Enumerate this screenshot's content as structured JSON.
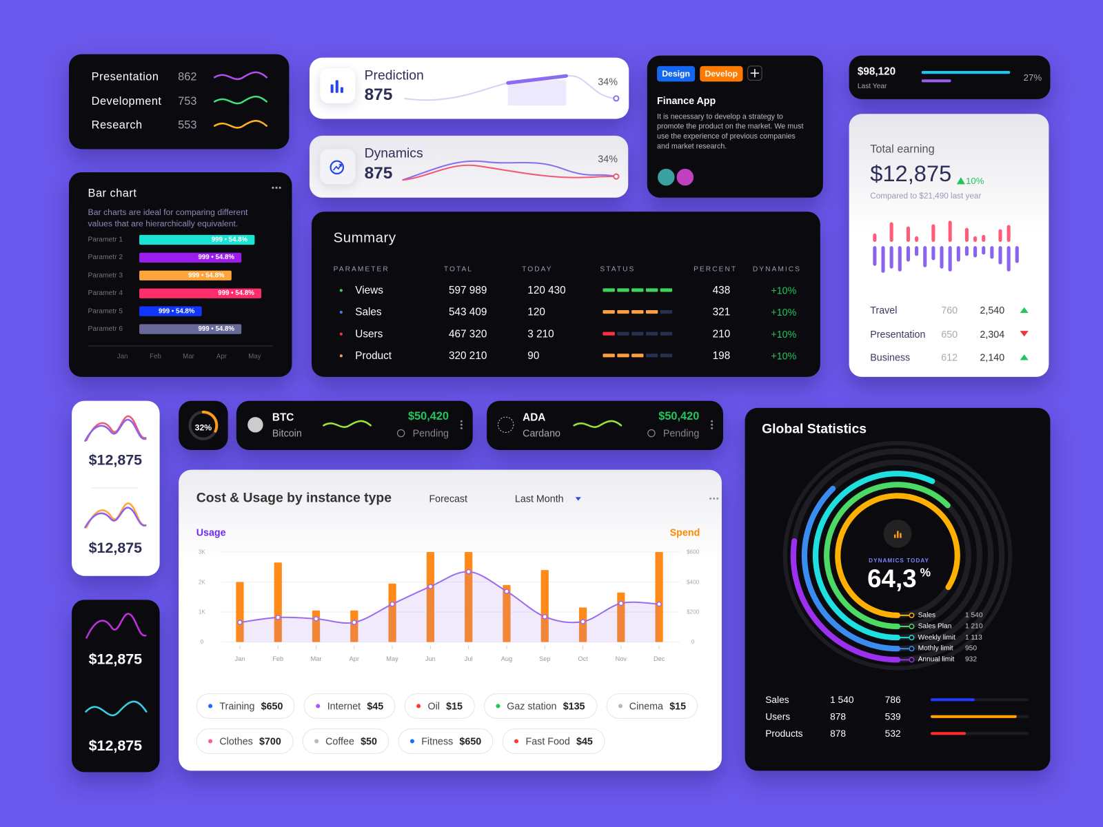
{
  "topics": [
    {
      "label": "Presentation",
      "value": 862,
      "color": "#b44cf0"
    },
    {
      "label": "Development",
      "value": 753,
      "color": "#3ee07a"
    },
    {
      "label": "Research",
      "value": 553,
      "color": "#ffb020"
    }
  ],
  "bar_chart": {
    "title": "Bar chart",
    "description": "Bar charts are ideal for comparing different values that are hierarchically equivalent.",
    "rows": [
      {
        "label": "Parametr 1",
        "value": 4.0,
        "value_label": "999 • 54.8%",
        "color": "#19e3d3"
      },
      {
        "label": "Parametr 2",
        "value": 3.6,
        "value_label": "999 • 54.8%",
        "color": "#9c1cf0"
      },
      {
        "label": "Parametr 3",
        "value": 3.3,
        "value_label": "999 • 54.8%",
        "color": "#ffa53a"
      },
      {
        "label": "Parametr 4",
        "value": 4.2,
        "value_label": "999 • 54.8%",
        "color": "#ff2d6b"
      },
      {
        "label": "Parametr 5",
        "value": 2.4,
        "value_label": "999 • 54.8%",
        "color": "#1136ff"
      },
      {
        "label": "Parametr 6",
        "value": 3.6,
        "value_label": "999 • 54.8%",
        "color": "#6a6a9a"
      }
    ],
    "categories": [
      "Jan",
      "Feb",
      "Mar",
      "Apr",
      "May"
    ]
  },
  "prediction": {
    "title": "Prediction",
    "value": 875,
    "change": "34%"
  },
  "dynamics": {
    "title": "Dynamics",
    "value": 875,
    "change": "34%"
  },
  "finance_app": {
    "tags": [
      {
        "label": "Design",
        "color": "#1467f0"
      },
      {
        "label": "Develop",
        "color": "#ff7a00"
      }
    ],
    "title": "Finance App",
    "description": "It is necessary to develop a strategy to promote the product on the market. We must use the experience of previous companies and market research."
  },
  "last_year": {
    "amount": "$98,120",
    "label": "Last Year",
    "change": "27%"
  },
  "total_earning": {
    "title": "Total earning",
    "amount": "$12,875",
    "change": "10%",
    "comparison": "Compared to $21,490 last year",
    "bars": {
      "up": [
        12,
        0,
        28,
        0,
        22,
        8,
        0,
        25,
        0,
        30,
        0,
        20,
        8,
        10,
        0,
        18,
        24,
        0
      ],
      "down": [
        28,
        38,
        32,
        36,
        22,
        14,
        30,
        20,
        32,
        36,
        22,
        14,
        16,
        12,
        18,
        26,
        36,
        24
      ]
    },
    "rows": [
      {
        "label": "Travel",
        "value": 760,
        "total": "2,540",
        "trend": "up"
      },
      {
        "label": "Presentation",
        "value": 650,
        "total": "2,304",
        "trend": "down"
      },
      {
        "label": "Business",
        "value": 612,
        "total": "2,140",
        "trend": "up"
      }
    ]
  },
  "summary": {
    "title": "Summary",
    "columns": [
      "PARAMETER",
      "TOTAL",
      "TODAY",
      "STATUS",
      "PERCENT",
      "DYNAMICS"
    ],
    "status_segments": 5,
    "rows": [
      {
        "name": "Views",
        "total": "597 989",
        "today": "120 430",
        "status": 5,
        "percent": 438,
        "dynamics": "+10%",
        "color": "#3fd35a",
        "dot": "#3fd35a"
      },
      {
        "name": "Sales",
        "total": "543 409",
        "today": "120",
        "status": 4,
        "percent": 321,
        "dynamics": "+10%",
        "color": "#ffa040",
        "dot": "#3b82f6"
      },
      {
        "name": "Users",
        "total": "467 320",
        "today": "3 210",
        "status": 1,
        "percent": 210,
        "dynamics": "+10%",
        "color": "#ff3040",
        "dot": "#ff3040"
      },
      {
        "name": "Product",
        "total": "320 210",
        "today": "90",
        "status": 3,
        "percent": 198,
        "dynamics": "+10%",
        "color": "#ffa040",
        "dot": "#ffa040"
      }
    ]
  },
  "mini_cards": [
    "$12,875",
    "$12,875",
    "$12,875",
    "$12,875"
  ],
  "gauge": {
    "value": 32,
    "label": "32%"
  },
  "crypto": [
    {
      "symbol": "BTC",
      "name": "Bitcoin",
      "price": "$50,420",
      "status": "Pending"
    },
    {
      "symbol": "ADA",
      "name": "Cardano",
      "price": "$50,420",
      "status": "Pending"
    }
  ],
  "cost_usage": {
    "title": "Cost & Usage by instance type",
    "filter": "Forecast",
    "period": "Last Month",
    "y_label": "Usage",
    "y2_label": "Spend",
    "categories": [
      "Jan",
      "Feb",
      "Mar",
      "Apr",
      "May",
      "Jun",
      "Jul",
      "Aug",
      "Sep",
      "Oct",
      "Nov",
      "Dec"
    ],
    "usage": [
      2000,
      2650,
      1050,
      1050,
      1950,
      3000,
      3000,
      1900,
      2400,
      1150,
      1650,
      3000
    ],
    "spend": [
      131,
      164,
      155,
      131,
      253,
      370,
      469,
      338,
      169,
      136,
      258,
      253
    ],
    "ylim": [
      0,
      3000
    ],
    "yticks": [
      0,
      {
        "value": 1000,
        "label": "1K"
      },
      {
        "value": 2000,
        "label": "2K"
      },
      {
        "value": 3000,
        "label": "3K"
      }
    ],
    "y2lim": [
      0,
      600
    ],
    "y2ticks": [
      0,
      {
        "value": 200,
        "label": "$200"
      },
      {
        "value": 400,
        "label": "$400"
      },
      {
        "value": 600,
        "label": "$600"
      }
    ],
    "legend": [
      {
        "name": "Training",
        "amount": "$650",
        "color": "#1e6bff"
      },
      {
        "name": "Internet",
        "amount": "$45",
        "color": "#a35cf5"
      },
      {
        "name": "Oil",
        "amount": "$15",
        "color": "#ff3b30"
      },
      {
        "name": "Gaz station",
        "amount": "$135",
        "color": "#22c55e"
      },
      {
        "name": "Cinema",
        "amount": "$15",
        "color": "#b8b8c8"
      },
      {
        "name": "Clothes",
        "amount": "$700",
        "color": "#ff5c9a"
      },
      {
        "name": "Coffee",
        "amount": "$50",
        "color": "#b8b8c8"
      },
      {
        "name": "Fitness",
        "amount": "$650",
        "color": "#1e6bff"
      },
      {
        "name": "Fast Food",
        "amount": "$45",
        "color": "#ff3b30"
      }
    ]
  },
  "global_statistics": {
    "title": "Global Statistics",
    "center_label": "DYNAMICS TODAY",
    "center_value": "64,3",
    "center_unit": "%",
    "rings": [
      {
        "name": "Sales",
        "value": "1 540",
        "sweep": 302,
        "color": "#ffb000"
      },
      {
        "name": "Sales Plan",
        "value": "1 210",
        "sweep": 225,
        "color": "#4cd964"
      },
      {
        "name": "Weekly limit",
        "value": "1 113",
        "sweep": 205,
        "color": "#1ee0e0"
      },
      {
        "name": "Mothly limit",
        "value": "950",
        "sweep": 136,
        "color": "#3a8cf0"
      },
      {
        "name": "Annual limit",
        "value": "932",
        "sweep": 98,
        "color": "#9b30f0"
      }
    ],
    "table": [
      {
        "name": "Sales",
        "value1": "1 540",
        "value2": 786,
        "progress": 45,
        "color": "#1e3cff"
      },
      {
        "name": "Users",
        "value1": "878",
        "value2": 539,
        "progress": 88,
        "color": "#ffa000"
      },
      {
        "name": "Products",
        "value1": "878",
        "value2": 532,
        "progress": 36,
        "color": "#ff2a2a"
      }
    ]
  }
}
